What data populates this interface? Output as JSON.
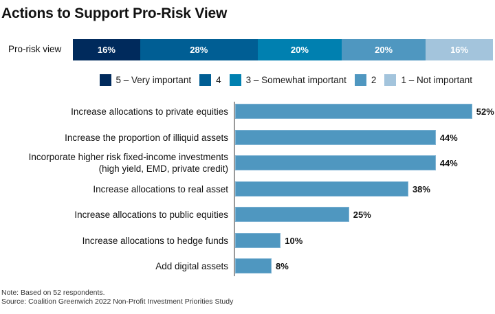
{
  "title": "Actions to Support Pro-Risk View",
  "chart_data": [
    {
      "type": "bar",
      "orientation": "horizontal-stacked",
      "title": "Pro-risk view",
      "categories": [
        "Pro-risk view"
      ],
      "series": [
        {
          "name": "5 – Very important",
          "values": [
            16
          ],
          "color": "#002a5c"
        },
        {
          "name": "4",
          "values": [
            28
          ],
          "color": "#005e94"
        },
        {
          "name": "3 – Somewhat important",
          "values": [
            20
          ],
          "color": "#0080b0"
        },
        {
          "name": "2",
          "values": [
            20
          ],
          "color": "#4f97c0"
        },
        {
          "name": "1 – Not important",
          "values": [
            16
          ],
          "color": "#a3c4dc"
        }
      ],
      "data_labels": [
        "16%",
        "28%",
        "20%",
        "20%",
        "16%"
      ],
      "legend": "below-right",
      "xlim": [
        0,
        100
      ]
    },
    {
      "type": "bar",
      "orientation": "horizontal",
      "categories": [
        "Increase allocations to private equities",
        "Increase the proportion of illiquid assets",
        "Incorporate higher risk fixed-income investments (high yield, EMD, private credit)",
        "Increase allocations to real asset",
        "Increase allocations to public equities",
        "Increase allocations to hedge funds",
        "Add digital assets"
      ],
      "values": [
        52,
        44,
        44,
        38,
        25,
        10,
        8
      ],
      "data_labels": [
        "52%",
        "44%",
        "44%",
        "38%",
        "25%",
        "10%",
        "8%"
      ],
      "color": "#4f97c0",
      "xlim": [
        0,
        57
      ],
      "grid": false,
      "xlabel": "",
      "ylabel": ""
    }
  ],
  "stack": {
    "label": "Pro-risk view"
  },
  "legend": [
    {
      "label": "5 – Very important",
      "color": "#002a5c"
    },
    {
      "label": "4",
      "color": "#005e94"
    },
    {
      "label": "3 – Somewhat important",
      "color": "#0080b0"
    },
    {
      "label": "2",
      "color": "#4f97c0"
    },
    {
      "label": "1 – Not important",
      "color": "#a3c4dc"
    }
  ],
  "bar_labels": [
    [
      "Increase allocations to private equities"
    ],
    [
      "Increase the proportion of illiquid assets"
    ],
    [
      "Incorporate higher risk fixed-income investments",
      "(high yield, EMD, private credit)"
    ],
    [
      "Increase allocations to real asset"
    ],
    [
      "Increase allocations to public equities"
    ],
    [
      "Increase allocations to hedge funds"
    ],
    [
      "Add digital assets"
    ]
  ],
  "footer": {
    "note": "Note: Based on 52 respondents.",
    "source": "Source: Coalition Greenwich 2022 Non-Profit Investment Priorities Study"
  }
}
